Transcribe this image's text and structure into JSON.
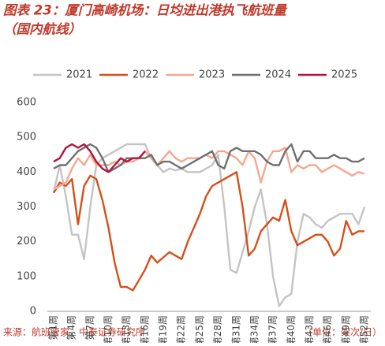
{
  "title_line1": "图表 23：厦门高崎机场：日均进出港执飞航班量",
  "title_line2": "（国内航线）",
  "source": "来源：航班管家，中泰证券研究所",
  "unit": "（单位：架次/日）",
  "chart_data": {
    "type": "line",
    "categories": [
      "第1周",
      null,
      null,
      "第4周",
      null,
      null,
      "第7周",
      null,
      null,
      "第10周",
      null,
      null,
      "第13周",
      null,
      null,
      "第16周",
      null,
      null,
      "第19周",
      null,
      null,
      "第22周",
      null,
      null,
      "第25周",
      null,
      null,
      "第28周",
      null,
      null,
      "第31周",
      null,
      null,
      "第34周",
      null,
      null,
      "第37周",
      null,
      null,
      "第40周",
      null,
      null,
      "第43周",
      null,
      null,
      "第46周",
      null,
      null,
      "第49周",
      null,
      null,
      "第52周"
    ],
    "ylim": [
      0,
      600
    ],
    "yticks": [
      0,
      100,
      200,
      300,
      400,
      500,
      600
    ],
    "series": [
      {
        "name": "2021",
        "color": "#c4c4c4",
        "values": [
          340,
          420,
          330,
          220,
          220,
          150,
          300,
          420,
          440,
          450,
          460,
          470,
          480,
          480,
          480,
          480,
          440,
          420,
          400,
          410,
          405,
          410,
          400,
          400,
          400,
          410,
          420,
          450,
          300,
          120,
          110,
          170,
          230,
          300,
          350,
          250,
          100,
          15,
          40,
          50,
          200,
          280,
          270,
          250,
          240,
          260,
          270,
          280,
          280,
          280,
          250,
          300
        ]
      },
      {
        "name": "2022",
        "color": "#d5501a",
        "values": [
          340,
          370,
          360,
          380,
          250,
          360,
          390,
          380,
          320,
          240,
          140,
          70,
          70,
          60,
          90,
          120,
          160,
          140,
          155,
          170,
          160,
          150,
          200,
          240,
          280,
          330,
          360,
          370,
          380,
          390,
          400,
          300,
          160,
          180,
          230,
          250,
          270,
          260,
          320,
          230,
          190,
          200,
          210,
          220,
          220,
          200,
          160,
          180,
          260,
          220,
          230,
          230
        ]
      },
      {
        "name": "2023",
        "color": "#f4a88f",
        "values": [
          350,
          360,
          370,
          410,
          440,
          420,
          450,
          420,
          420,
          420,
          430,
          420,
          430,
          430,
          440,
          460,
          440,
          420,
          440,
          460,
          440,
          430,
          440,
          440,
          440,
          450,
          440,
          460,
          460,
          450,
          440,
          420,
          460,
          440,
          370,
          430,
          460,
          460,
          470,
          400,
          420,
          410,
          420,
          420,
          400,
          410,
          420,
          410,
          400,
          390,
          400,
          395
        ]
      },
      {
        "name": "2024",
        "color": "#707070",
        "values": [
          410,
          420,
          420,
          440,
          460,
          470,
          480,
          470,
          440,
          400,
          410,
          420,
          440,
          440,
          440,
          440,
          450,
          420,
          430,
          430,
          420,
          410,
          420,
          430,
          440,
          450,
          460,
          420,
          410,
          460,
          470,
          460,
          460,
          460,
          450,
          430,
          420,
          420,
          460,
          480,
          430,
          460,
          460,
          440,
          440,
          440,
          450,
          440,
          440,
          430,
          430,
          440
        ]
      },
      {
        "name": "2025",
        "color": "#b5123e",
        "values": [
          430,
          440,
          470,
          480,
          470,
          480,
          460,
          430,
          410,
          400,
          420,
          440,
          430,
          440,
          440,
          460,
          null,
          null,
          null,
          null,
          null,
          null,
          null,
          null,
          null,
          null,
          null,
          null,
          null,
          null,
          null,
          null,
          null,
          null,
          null,
          null,
          null,
          null,
          null,
          null,
          null,
          null,
          null,
          null,
          null,
          null,
          null,
          null,
          null,
          null,
          null,
          null
        ]
      }
    ]
  }
}
